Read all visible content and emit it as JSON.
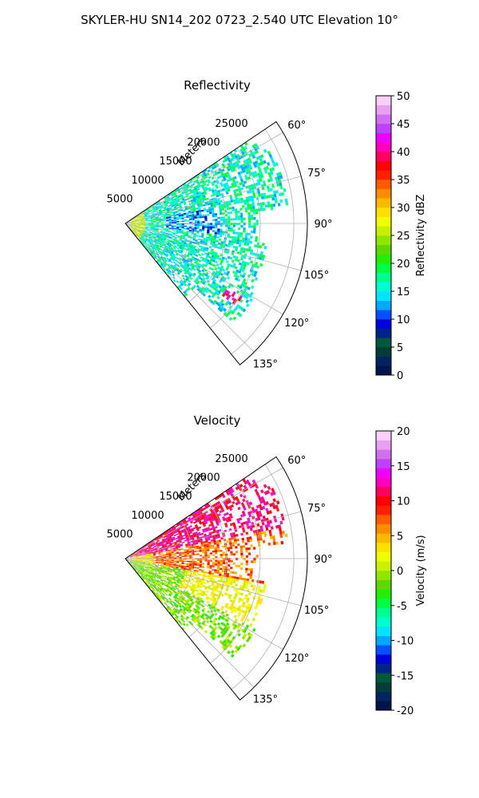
{
  "figure": {
    "title": "SKYLER-HU  SN14_202  0723_2.540 UTC Elevation 10°"
  },
  "chart_data": [
    {
      "type": "heatmap",
      "subtype": "polar-sector (radar PPI)",
      "title": "Reflectivity",
      "range_label": "Meters",
      "range_ticks": [
        5000,
        10000,
        15000,
        20000,
        25000
      ],
      "range_max": 27000,
      "azimuth_ticks": [
        "60°",
        "75°",
        "90°",
        "105°",
        "120°",
        "135°"
      ],
      "azimuth_range_deg": [
        55,
        141
      ],
      "grid": true,
      "colorbar": {
        "label": "Reflectivity dBZ",
        "min": 0,
        "max": 50,
        "ticks": [
          0,
          5,
          10,
          15,
          20,
          25,
          30,
          35,
          40,
          45,
          50
        ],
        "colors": [
          "#00134d",
          "#00245f",
          "#003c38",
          "#005a3a",
          "#00238a",
          "#0000d8",
          "#0050ff",
          "#00a8ff",
          "#00e4ff",
          "#00ffd0",
          "#00ff90",
          "#00ff40",
          "#20f000",
          "#60d800",
          "#90e600",
          "#c8f000",
          "#f0ff00",
          "#ffe000",
          "#ffb800",
          "#ff8c00",
          "#ff5a00",
          "#ff2000",
          "#ff0000",
          "#ff0060",
          "#ff00c0",
          "#ee00ff",
          "#c040ff",
          "#d070f0",
          "#e8a0f0",
          "#f8d0f8"
        ]
      },
      "data_summary": {
        "dominant_value_range": [
          12,
          22
        ],
        "near_radar_max": 30,
        "hotspot": {
          "azimuth_deg": 124,
          "range_m": 19000,
          "max": 40
        }
      }
    },
    {
      "type": "heatmap",
      "subtype": "polar-sector (radar PPI)",
      "title": "Velocity",
      "range_label": "Meters",
      "range_ticks": [
        5000,
        10000,
        15000,
        20000,
        25000
      ],
      "range_max": 27000,
      "azimuth_ticks": [
        "60°",
        "75°",
        "90°",
        "105°",
        "120°",
        "135°"
      ],
      "azimuth_range_deg": [
        55,
        141
      ],
      "grid": true,
      "colorbar": {
        "label": "Velocity (m/s)",
        "min": -20,
        "max": 20,
        "ticks": [
          -20,
          -15,
          -10,
          -5,
          0,
          5,
          10,
          15,
          20
        ],
        "colors": [
          "#00134d",
          "#00245f",
          "#003c38",
          "#005a3a",
          "#00238a",
          "#0000d8",
          "#0050ff",
          "#00a8ff",
          "#00e4ff",
          "#00ffd0",
          "#00ff90",
          "#00ff40",
          "#20f000",
          "#60d800",
          "#90e600",
          "#c8f000",
          "#f0ff00",
          "#ffe000",
          "#ffb800",
          "#ff8c00",
          "#ff5a00",
          "#ff2000",
          "#ff0000",
          "#ff0060",
          "#ff00c0",
          "#ee00ff",
          "#c040ff",
          "#d070f0",
          "#e8a0f0",
          "#f8d0f8"
        ]
      },
      "data_summary": {
        "northern_sector_values": [
          8,
          14
        ],
        "central_sector_values": [
          0,
          10
        ],
        "southern_sector_values": [
          -6,
          2
        ]
      }
    }
  ]
}
